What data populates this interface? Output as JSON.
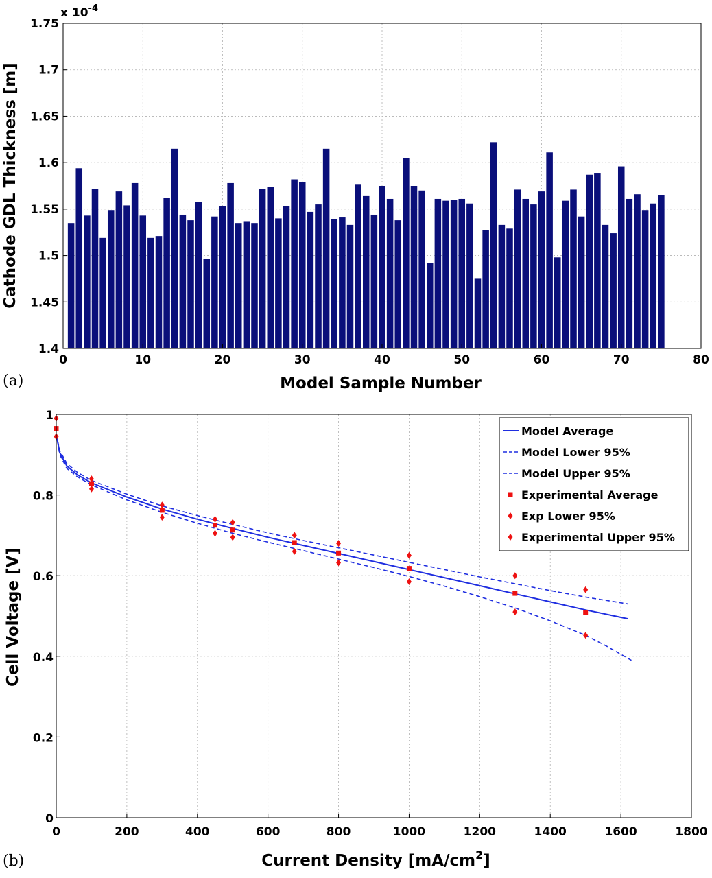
{
  "chart_data": [
    {
      "type": "bar",
      "panel_label": "(a)",
      "title": "",
      "xlabel": "Model Sample Number",
      "ylabel": "Cathode GDL Thickness [m]",
      "y_scale_note": "x 10",
      "y_scale_exp": "-4",
      "xlim": [
        0,
        80
      ],
      "ylim": [
        1.4,
        1.75
      ],
      "xticks": [
        "0",
        "10",
        "20",
        "30",
        "40",
        "50",
        "60",
        "70",
        "80"
      ],
      "yticks": [
        "1.4",
        "1.45",
        "1.5",
        "1.55",
        "1.6",
        "1.65",
        "1.7",
        "1.75"
      ],
      "bar_color": "#0a0f7a",
      "x": [
        1,
        2,
        3,
        4,
        5,
        6,
        7,
        8,
        9,
        10,
        11,
        12,
        13,
        14,
        15,
        16,
        17,
        18,
        19,
        20,
        21,
        22,
        23,
        24,
        25,
        26,
        27,
        28,
        29,
        30,
        31,
        32,
        33,
        34,
        35,
        36,
        37,
        38,
        39,
        40,
        41,
        42,
        43,
        44,
        45,
        46,
        47,
        48,
        49,
        50,
        51,
        52,
        53,
        54,
        55,
        56,
        57,
        58,
        59,
        60,
        61,
        62,
        63,
        64,
        65,
        66,
        67,
        68,
        69,
        70,
        71,
        72,
        73,
        74,
        75
      ],
      "values": [
        1.535,
        1.594,
        1.543,
        1.572,
        1.519,
        1.549,
        1.569,
        1.554,
        1.578,
        1.543,
        1.519,
        1.521,
        1.562,
        1.615,
        1.544,
        1.538,
        1.558,
        1.496,
        1.542,
        1.553,
        1.578,
        1.535,
        1.537,
        1.535,
        1.572,
        1.574,
        1.54,
        1.553,
        1.582,
        1.579,
        1.547,
        1.555,
        1.615,
        1.539,
        1.541,
        1.533,
        1.577,
        1.564,
        1.544,
        1.575,
        1.561,
        1.538,
        1.605,
        1.575,
        1.57,
        1.492,
        1.561,
        1.559,
        1.56,
        1.561,
        1.556,
        1.475,
        1.527,
        1.622,
        1.533,
        1.529,
        1.571,
        1.561,
        1.555,
        1.569,
        1.611,
        1.498,
        1.559,
        1.571,
        1.542,
        1.587,
        1.589,
        1.533,
        1.524,
        1.596,
        1.561,
        1.566,
        1.549,
        1.556,
        1.565
      ]
    },
    {
      "type": "line",
      "panel_label": "(b)",
      "title": "",
      "xlabel": "Current Density [mA/cm",
      "xlabel_sup": "2",
      "xlabel_end": "]",
      "ylabel": "Cell Voltage [V]",
      "xlim": [
        0,
        1800
      ],
      "ylim": [
        0,
        1
      ],
      "xticks": [
        "0",
        "200",
        "400",
        "600",
        "800",
        "1000",
        "1200",
        "1400",
        "1600",
        "1800"
      ],
      "yticks": [
        "0",
        "0.2",
        "0.4",
        "0.6",
        "0.8",
        "1"
      ],
      "line_color": "#1f2ee0",
      "marker_color": "#ee1111",
      "legend": [
        "Model Average",
        "Model Lower 95%",
        "Model Upper 95%",
        "Experimental Average",
        "Exp Lower 95%",
        "Experimental Upper 95%"
      ],
      "series": [
        {
          "name": "Model Average",
          "style": "solid",
          "x": [
            0,
            10,
            30,
            60,
            100,
            200,
            300,
            400,
            500,
            600,
            700,
            800,
            900,
            1000,
            1100,
            1200,
            1300,
            1400,
            1500,
            1620
          ],
          "y": [
            0.95,
            0.905,
            0.872,
            0.85,
            0.83,
            0.795,
            0.765,
            0.74,
            0.717,
            0.695,
            0.675,
            0.655,
            0.635,
            0.615,
            0.595,
            0.575,
            0.555,
            0.535,
            0.515,
            0.493
          ]
        },
        {
          "name": "Model Lower 95%",
          "style": "dashed",
          "x": [
            0,
            10,
            30,
            60,
            100,
            200,
            300,
            400,
            500,
            600,
            700,
            800,
            900,
            1000,
            1100,
            1200,
            1300,
            1400,
            1500,
            1560,
            1630
          ],
          "y": [
            0.95,
            0.9,
            0.866,
            0.845,
            0.825,
            0.788,
            0.757,
            0.73,
            0.705,
            0.683,
            0.662,
            0.641,
            0.62,
            0.598,
            0.574,
            0.548,
            0.52,
            0.488,
            0.452,
            0.425,
            0.39
          ]
        },
        {
          "name": "Model Upper 95%",
          "style": "dashed",
          "x": [
            0,
            10,
            30,
            60,
            100,
            200,
            300,
            400,
            500,
            600,
            700,
            800,
            900,
            1000,
            1100,
            1200,
            1300,
            1400,
            1500,
            1620
          ],
          "y": [
            0.95,
            0.91,
            0.878,
            0.856,
            0.836,
            0.802,
            0.773,
            0.749,
            0.727,
            0.706,
            0.687,
            0.669,
            0.651,
            0.633,
            0.615,
            0.597,
            0.58,
            0.563,
            0.547,
            0.53
          ]
        },
        {
          "name": "Experimental Average",
          "style": "square",
          "x": [
            0,
            100,
            300,
            450,
            500,
            675,
            800,
            1000,
            1300,
            1500
          ],
          "y": [
            0.965,
            0.828,
            0.762,
            0.725,
            0.713,
            0.682,
            0.656,
            0.618,
            0.556,
            0.508
          ]
        },
        {
          "name": "Exp Lower 95%",
          "style": "diamond",
          "x": [
            0,
            100,
            300,
            450,
            500,
            675,
            800,
            1000,
            1300,
            1500
          ],
          "y": [
            0.945,
            0.815,
            0.745,
            0.705,
            0.695,
            0.66,
            0.632,
            0.585,
            0.51,
            0.452
          ]
        },
        {
          "name": "Experimental Upper 95%",
          "style": "diamond",
          "x": [
            0,
            100,
            300,
            450,
            500,
            675,
            800,
            1000,
            1300,
            1500
          ],
          "y": [
            0.99,
            0.84,
            0.775,
            0.74,
            0.732,
            0.7,
            0.68,
            0.65,
            0.6,
            0.565
          ]
        }
      ]
    }
  ]
}
